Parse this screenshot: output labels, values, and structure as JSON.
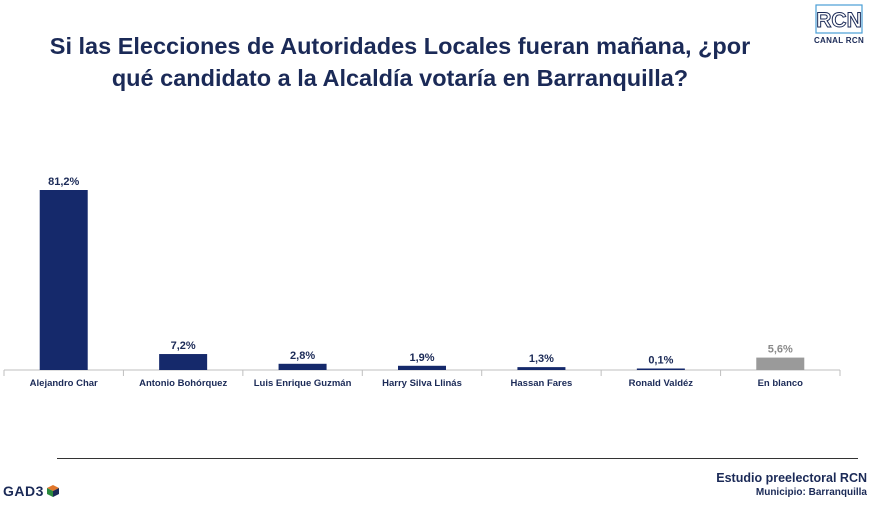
{
  "title_lines": [
    "Si las Elecciones de Autoridades Locales fueran mañana, ¿por",
    "qué candidato a la Alcaldía votaría en Barranquilla?"
  ],
  "logos": {
    "broadcaster_mark": "RCN",
    "broadcaster_name": "CANAL RCN",
    "pollster": "GAD3"
  },
  "footer": {
    "study": "Estudio preelectoral RCN",
    "municipality": "Municipio:  Barranquilla"
  },
  "colors": {
    "primary": "#15296b",
    "blank": "#9a9a9a",
    "title": "#1b2a57"
  },
  "chart_data": {
    "type": "bar",
    "categories": [
      "Alejandro Char",
      "Antonio Bohórquez",
      "Luis Enrique Guzmán",
      "Harry Silva Llinás",
      "Hassan Fares",
      "Ronald Valdéz",
      "En blanco"
    ],
    "values": [
      81.2,
      7.2,
      2.8,
      1.9,
      1.3,
      0.1,
      5.6
    ],
    "data_labels": [
      "81,2%",
      "7,2%",
      "2,8%",
      "1,9%",
      "1,3%",
      "0,1%",
      "5,6%"
    ],
    "bar_colors": [
      "#15296b",
      "#15296b",
      "#15296b",
      "#15296b",
      "#15296b",
      "#15296b",
      "#9a9a9a"
    ],
    "label_colors": [
      "#1b2a57",
      "#1b2a57",
      "#1b2a57",
      "#1b2a57",
      "#1b2a57",
      "#1b2a57",
      "#8a8a8a"
    ],
    "ylim": [
      0,
      81.2
    ],
    "grid": false,
    "legend": "none"
  }
}
